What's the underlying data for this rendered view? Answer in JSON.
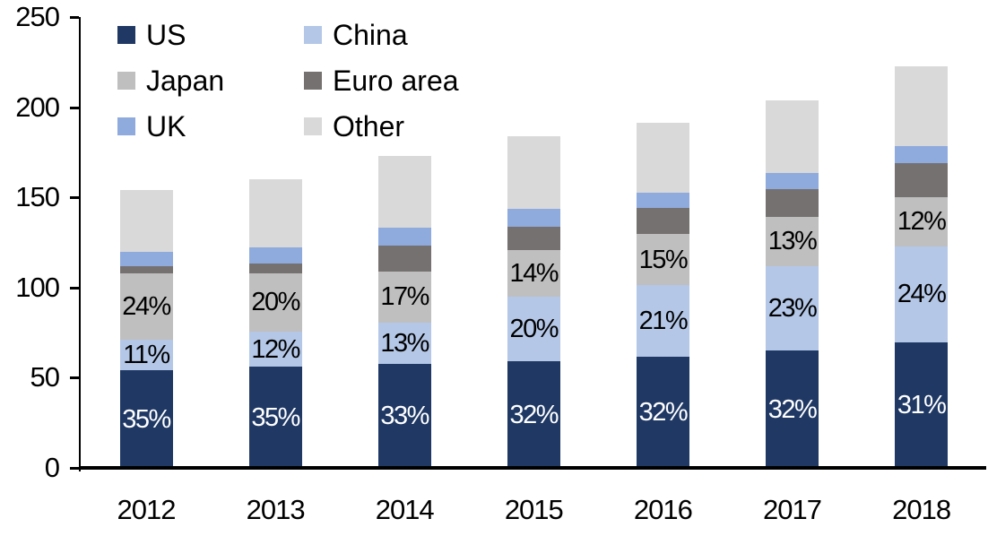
{
  "chart_data": {
    "type": "bar",
    "stacked": true,
    "title": "",
    "xlabel": "",
    "ylabel": "",
    "categories": [
      "2012",
      "2013",
      "2014",
      "2015",
      "2016",
      "2017",
      "2018"
    ],
    "series": [
      {
        "name": "US",
        "color": "#1F3864",
        "values": [
          54,
          56,
          57.5,
          59,
          61.5,
          65,
          69.5
        ],
        "labels": [
          "35%",
          "35%",
          "33%",
          "32%",
          "32%",
          "32%",
          "31%"
        ],
        "label_color": "#ffffff"
      },
      {
        "name": "China",
        "color": "#B4C7E7",
        "values": [
          17,
          19.5,
          23,
          36,
          40,
          47,
          53.5
        ],
        "labels": [
          "11%",
          "12%",
          "13%",
          "20%",
          "21%",
          "23%",
          "24%"
        ],
        "label_color": "#000000"
      },
      {
        "name": "Japan",
        "color": "#BFBFBF",
        "values": [
          37,
          32.5,
          28.5,
          26,
          28,
          27,
          27
        ],
        "labels": [
          "24%",
          "20%",
          "17%",
          "14%",
          "15%",
          "13%",
          "12%"
        ],
        "label_color": "#000000"
      },
      {
        "name": "Euro area",
        "color": "#767171",
        "values": [
          4,
          5.5,
          14.5,
          12.5,
          14.5,
          15.5,
          19
        ],
        "labels": null,
        "label_color": "#000000"
      },
      {
        "name": "UK",
        "color": "#8FAADC",
        "values": [
          8,
          9,
          9.5,
          10,
          8.5,
          9,
          9.5
        ],
        "labels": null,
        "label_color": "#000000"
      },
      {
        "name": "Other",
        "color": "#D9D9D9",
        "values": [
          34,
          37.5,
          40,
          40.5,
          39,
          40.5,
          44
        ],
        "labels": null,
        "label_color": "#000000"
      }
    ],
    "totals": [
      154,
      160,
      173,
      184,
      191.5,
      204,
      222.5
    ],
    "ylim": [
      0,
      250
    ],
    "yticks": [
      0,
      50,
      100,
      150,
      200,
      250
    ],
    "grid": false,
    "legend_position": "top-left",
    "legend_rows": [
      [
        "US",
        "China"
      ],
      [
        "Japan",
        "Euro area"
      ],
      [
        "UK",
        "Other"
      ]
    ],
    "axis_color": "#000000"
  }
}
